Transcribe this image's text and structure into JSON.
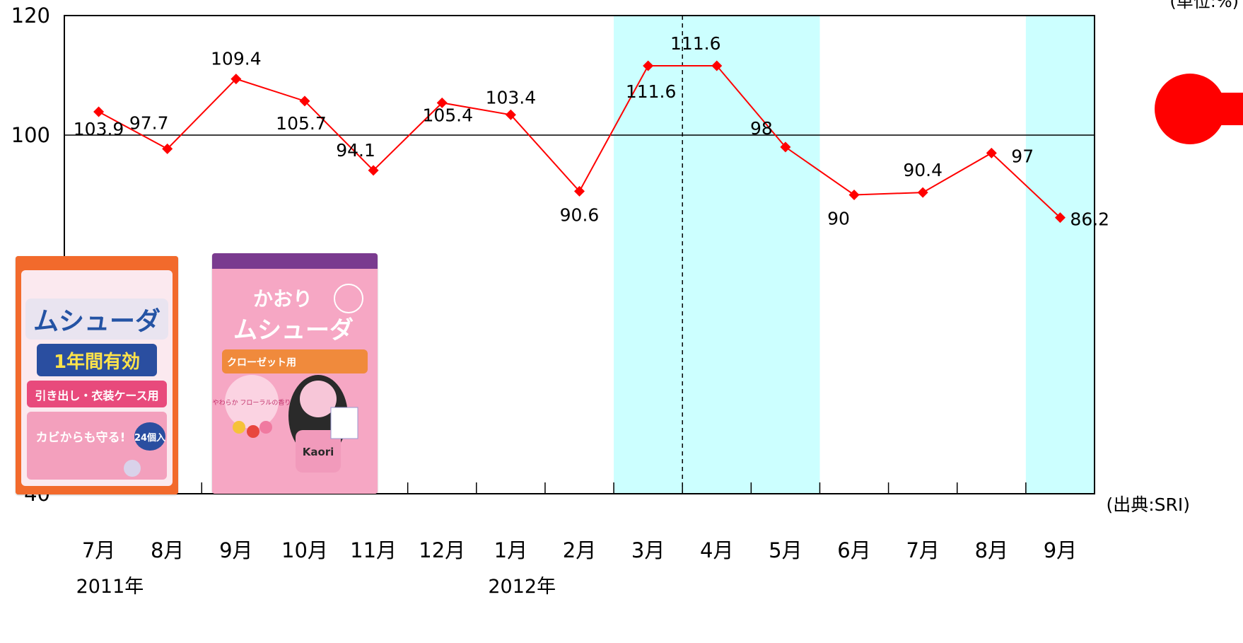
{
  "unit_label": "(単位:%)",
  "source_label": "(出典:SRI)",
  "colors": {
    "line": "#ff0000",
    "highlight": "#ccffff",
    "indicator": "#ff0000"
  },
  "chart_data": {
    "type": "line",
    "categories": [
      "7月",
      "8月",
      "9月",
      "10月",
      "11月",
      "12月",
      "1月",
      "2月",
      "3月",
      "4月",
      "5月",
      "6月",
      "7月",
      "8月",
      "9月"
    ],
    "year_labels": [
      {
        "text": "2011年",
        "category_index": 0
      },
      {
        "text": "2012年",
        "category_index": 6
      }
    ],
    "series": [
      {
        "values": [
          103.9,
          97.7,
          109.4,
          105.7,
          94.1,
          105.4,
          103.4,
          90.6,
          111.6,
          111.6,
          98,
          90,
          90.4,
          97,
          86.2
        ]
      }
    ],
    "data_labels": [
      "103.9",
      "97.7",
      "109.4",
      "105.7",
      "94.1",
      "105.4",
      "103.4",
      "90.6",
      "111.6",
      "111.6",
      "98",
      "90",
      "90.4",
      "97",
      "86.2"
    ],
    "y_ticks": [
      40,
      100,
      120
    ],
    "ylim": [
      40,
      120
    ],
    "reference_line": 100,
    "highlight_ranges": [
      [
        8,
        10
      ],
      [
        14,
        14
      ]
    ],
    "dashed_divider_after_index": 8,
    "grid": false,
    "legend": "none"
  },
  "products": [
    {
      "name": "ムシューダ",
      "lines": [
        "ムシューダ",
        "1年間有効",
        "引き出し・衣装ケース用",
        "カビからも守る!",
        "24個入"
      ]
    },
    {
      "name": "かおりムシューダ",
      "lines": [
        "かおり",
        "ムシューダ",
        "クローゼット用",
        "やわらか フローラルの香り",
        "Kaori"
      ]
    }
  ]
}
